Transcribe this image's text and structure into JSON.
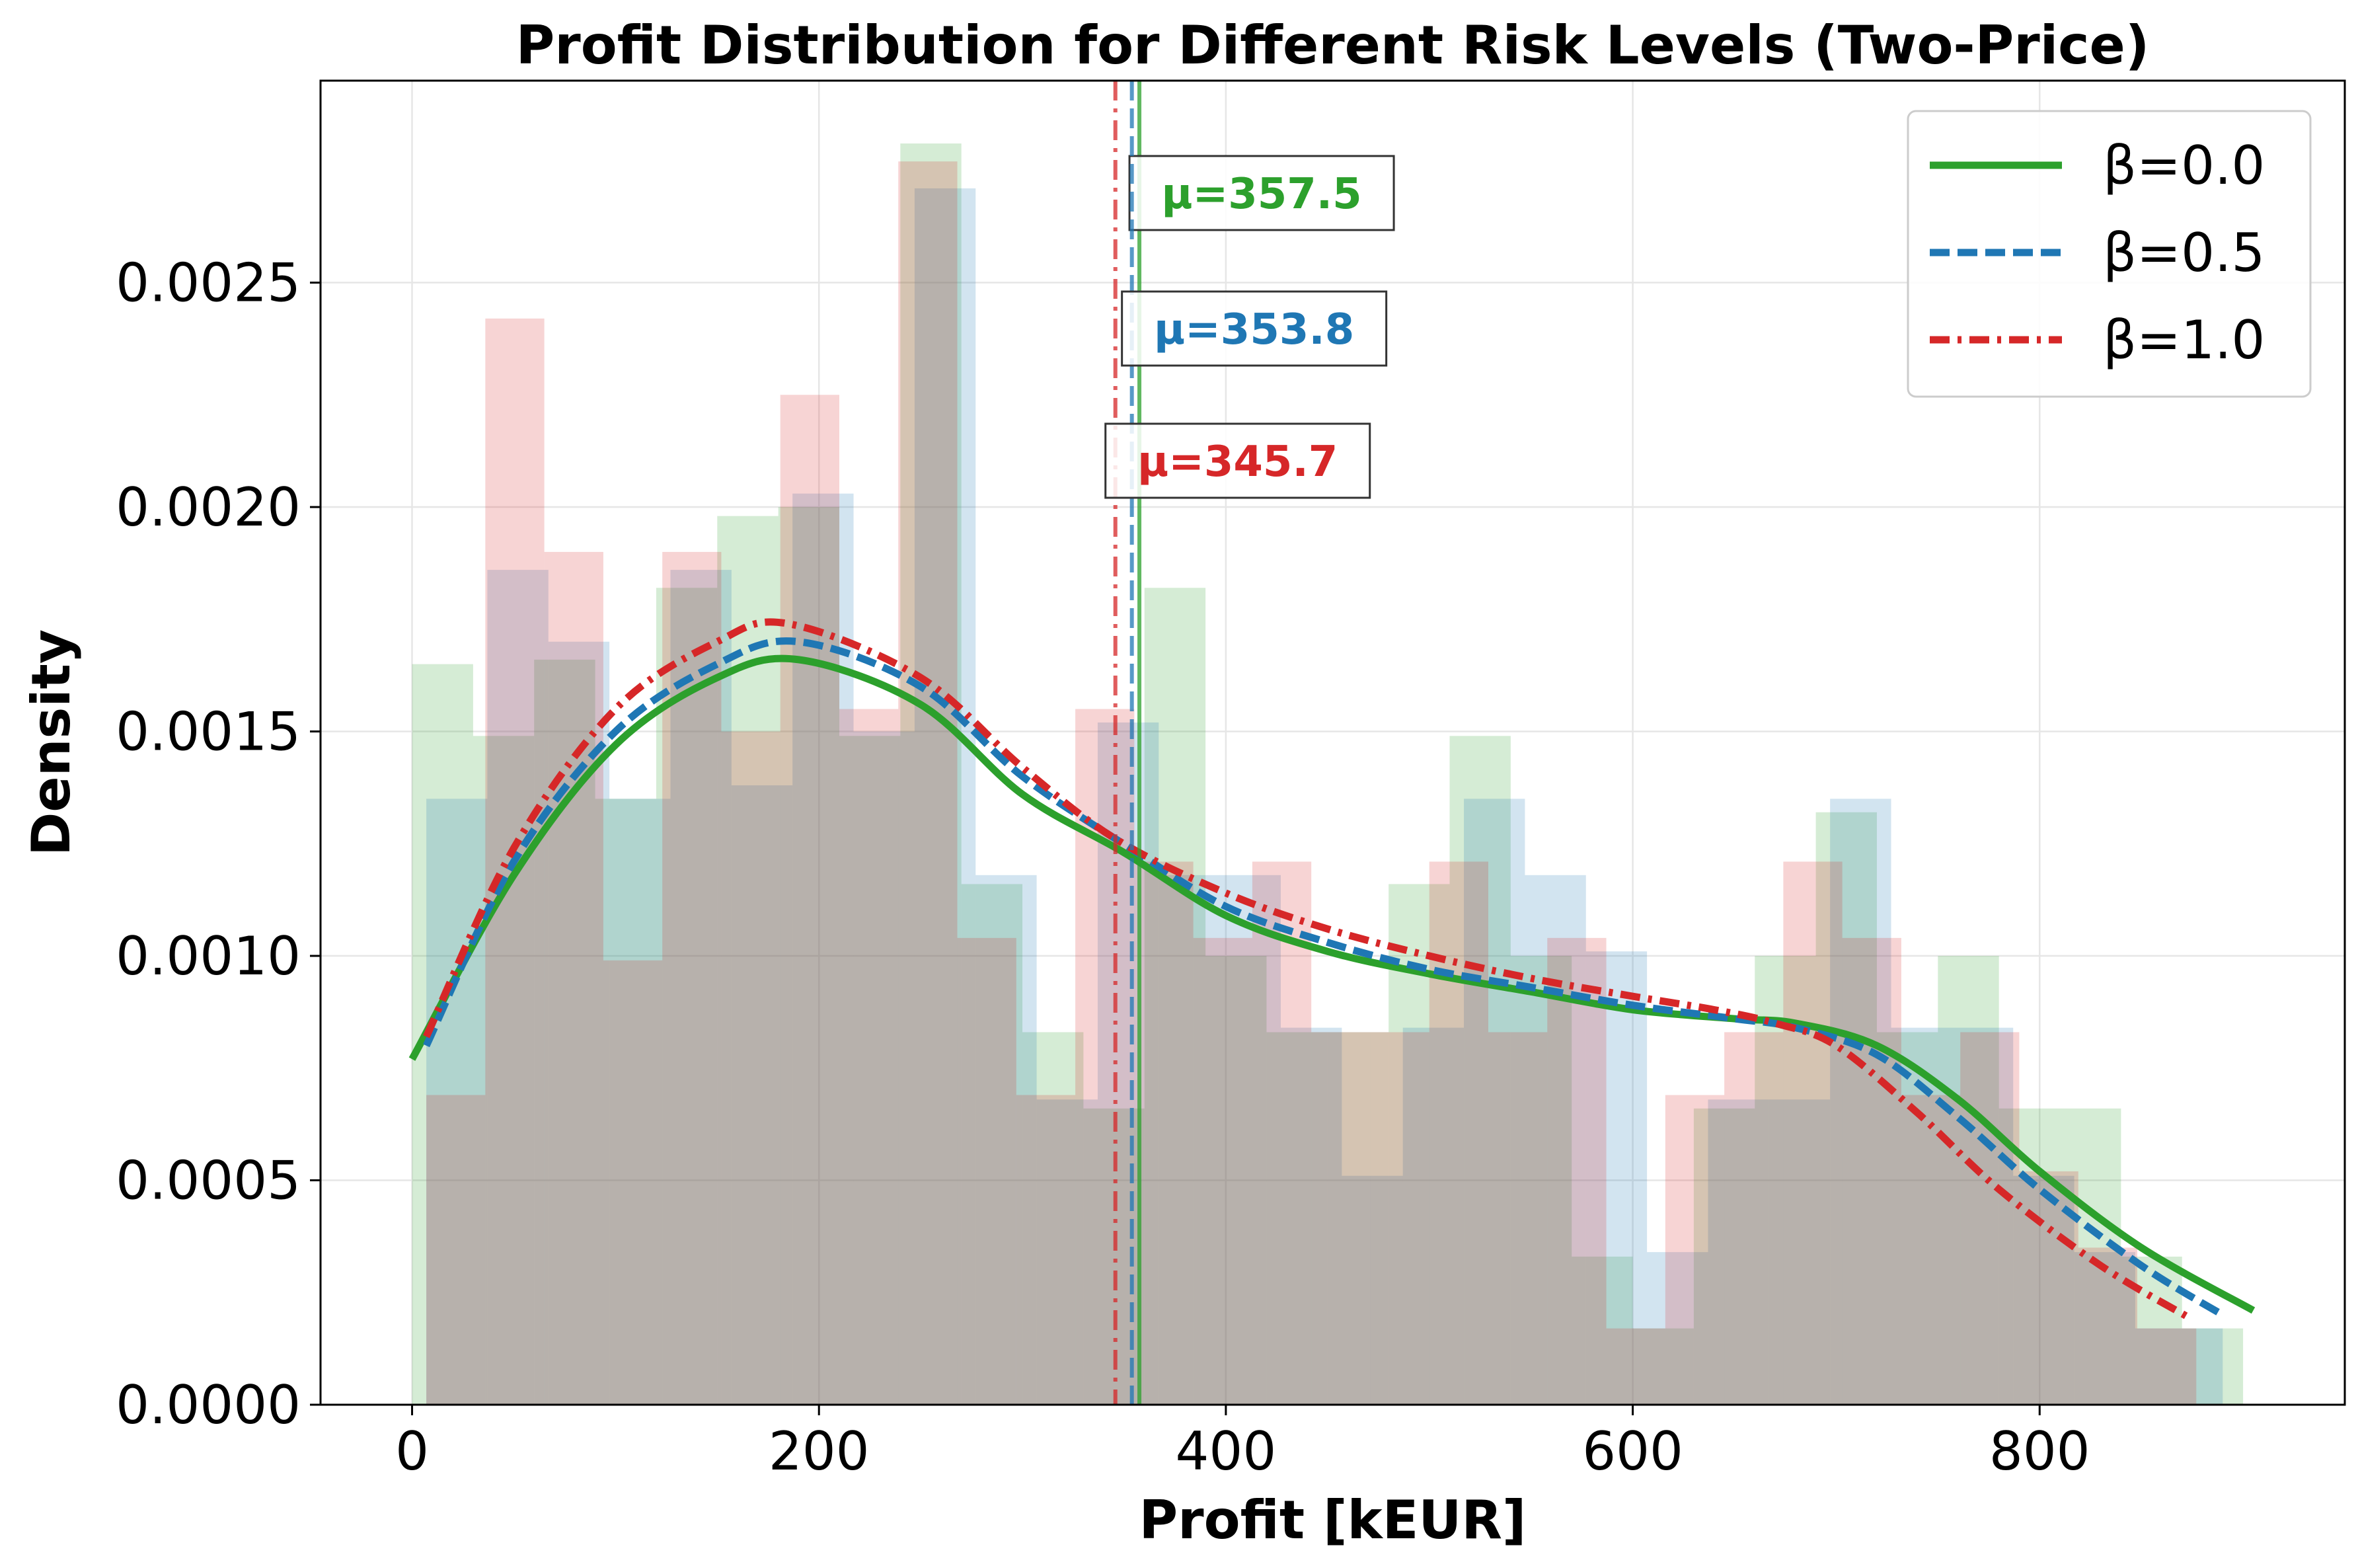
{
  "chart_data": {
    "type": "histogram+kde",
    "title": "Profit Distribution for Different Risk Levels (Two-Price)",
    "xlabel": "Profit [kEUR]",
    "ylabel": "Density",
    "xlim": [
      -45,
      950
    ],
    "ylim": [
      0,
      0.00295
    ],
    "x_ticks": [
      0,
      200,
      400,
      600,
      800
    ],
    "x_tick_labels": [
      "0",
      "200",
      "400",
      "600",
      "800"
    ],
    "y_ticks": [
      0,
      0.0005,
      0.001,
      0.0015,
      0.002,
      0.0025
    ],
    "y_tick_labels": [
      "0.0000",
      "0.0005",
      "0.0010",
      "0.0015",
      "0.0020",
      "0.0025"
    ],
    "grid": true,
    "legend_position": "top-right",
    "series": [
      {
        "name": "β=0.0",
        "color": "#2ca02c",
        "line_style": "solid",
        "mean": 357.5,
        "mean_label": "μ=357.5",
        "hist_edges": [
          0,
          30,
          60,
          90,
          120,
          150,
          180,
          210,
          240,
          270,
          300,
          330,
          360,
          390,
          420,
          450,
          480,
          510,
          540,
          570,
          600,
          630,
          660,
          690,
          720,
          750,
          780,
          810,
          840,
          870,
          900
        ],
        "hist_density": [
          0.00165,
          0.00149,
          0.00166,
          0.00135,
          0.00182,
          0.00198,
          0.002,
          0.00149,
          0.00281,
          0.00116,
          0.00083,
          0.00066,
          0.00182,
          0.001,
          0.00083,
          0.00083,
          0.00116,
          0.00149,
          0.001,
          0.00033,
          0.00017,
          0.00066,
          0.001,
          0.00132,
          0.00083,
          0.001,
          0.00066,
          0.00066,
          0.00033,
          0.00017
        ],
        "kde_x": [
          0,
          50,
          100,
          150,
          190,
          250,
          300,
          350,
          400,
          450,
          500,
          550,
          600,
          650,
          680,
          720,
          760,
          800,
          850,
          905
        ],
        "kde_y": [
          0.00077,
          0.00118,
          0.00147,
          0.00162,
          0.00166,
          0.00156,
          0.00136,
          0.00123,
          0.00109,
          0.00101,
          0.00096,
          0.00092,
          0.00088,
          0.00086,
          0.00085,
          0.0008,
          0.00068,
          0.00052,
          0.00035,
          0.00021
        ]
      },
      {
        "name": "β=0.5",
        "color": "#1f77b4",
        "line_style": "dashed",
        "mean": 353.8,
        "mean_label": "μ=353.8",
        "hist_edges": [
          7,
          37,
          67,
          97,
          127,
          157,
          187,
          217,
          247,
          277,
          307,
          337,
          367,
          397,
          427,
          457,
          487,
          517,
          547,
          577,
          607,
          637,
          667,
          697,
          727,
          757,
          787,
          817,
          847,
          877,
          890
        ],
        "hist_density": [
          0.00135,
          0.00186,
          0.0017,
          0.00135,
          0.00186,
          0.00138,
          0.00203,
          0.0015,
          0.00271,
          0.00118,
          0.00068,
          0.00152,
          0.00118,
          0.00118,
          0.00084,
          0.00051,
          0.00084,
          0.00135,
          0.00118,
          0.00101,
          0.00034,
          0.00068,
          0.00068,
          0.00135,
          0.00084,
          0.00084,
          0.00051,
          0.00034,
          0.00017,
          0.00017
        ],
        "kde_x": [
          7,
          50,
          100,
          150,
          190,
          250,
          300,
          353,
          400,
          450,
          500,
          550,
          600,
          650,
          680,
          720,
          760,
          800,
          850,
          890
        ],
        "kde_y": [
          0.0008,
          0.00121,
          0.0015,
          0.00165,
          0.0017,
          0.0016,
          0.0014,
          0.00124,
          0.00111,
          0.00103,
          0.00097,
          0.00093,
          0.00089,
          0.00086,
          0.00084,
          0.00078,
          0.00064,
          0.00048,
          0.00031,
          0.0002
        ]
      },
      {
        "name": "β=1.0",
        "color": "#d62728",
        "line_style": "dashdot",
        "mean": 345.7,
        "mean_label": "μ=345.7",
        "hist_edges": [
          7,
          36,
          65,
          94,
          123,
          152,
          181,
          210,
          239,
          268,
          297,
          326,
          355,
          384,
          413,
          442,
          471,
          500,
          529,
          558,
          587,
          616,
          645,
          674,
          703,
          732,
          761,
          790,
          819,
          848,
          877
        ],
        "hist_density": [
          0.00069,
          0.00242,
          0.0019,
          0.00099,
          0.0019,
          0.0015,
          0.00225,
          0.00155,
          0.00277,
          0.00104,
          0.00069,
          0.00155,
          0.00121,
          0.00104,
          0.00121,
          0.00083,
          0.00083,
          0.00121,
          0.00083,
          0.00104,
          0.00017,
          0.00069,
          0.00083,
          0.00121,
          0.00104,
          0.00069,
          0.00083,
          0.00052,
          0.00035,
          0.00017
        ],
        "kde_x": [
          7,
          50,
          100,
          150,
          185,
          250,
          300,
          346,
          400,
          450,
          500,
          550,
          600,
          640,
          670,
          700,
          740,
          780,
          830,
          875
        ],
        "kde_y": [
          0.00082,
          0.00124,
          0.00155,
          0.0017,
          0.00174,
          0.00162,
          0.00142,
          0.00126,
          0.00114,
          0.00106,
          0.001,
          0.00095,
          0.00091,
          0.00088,
          0.00085,
          0.0008,
          0.00065,
          0.00048,
          0.00031,
          0.00019
        ]
      }
    ]
  }
}
